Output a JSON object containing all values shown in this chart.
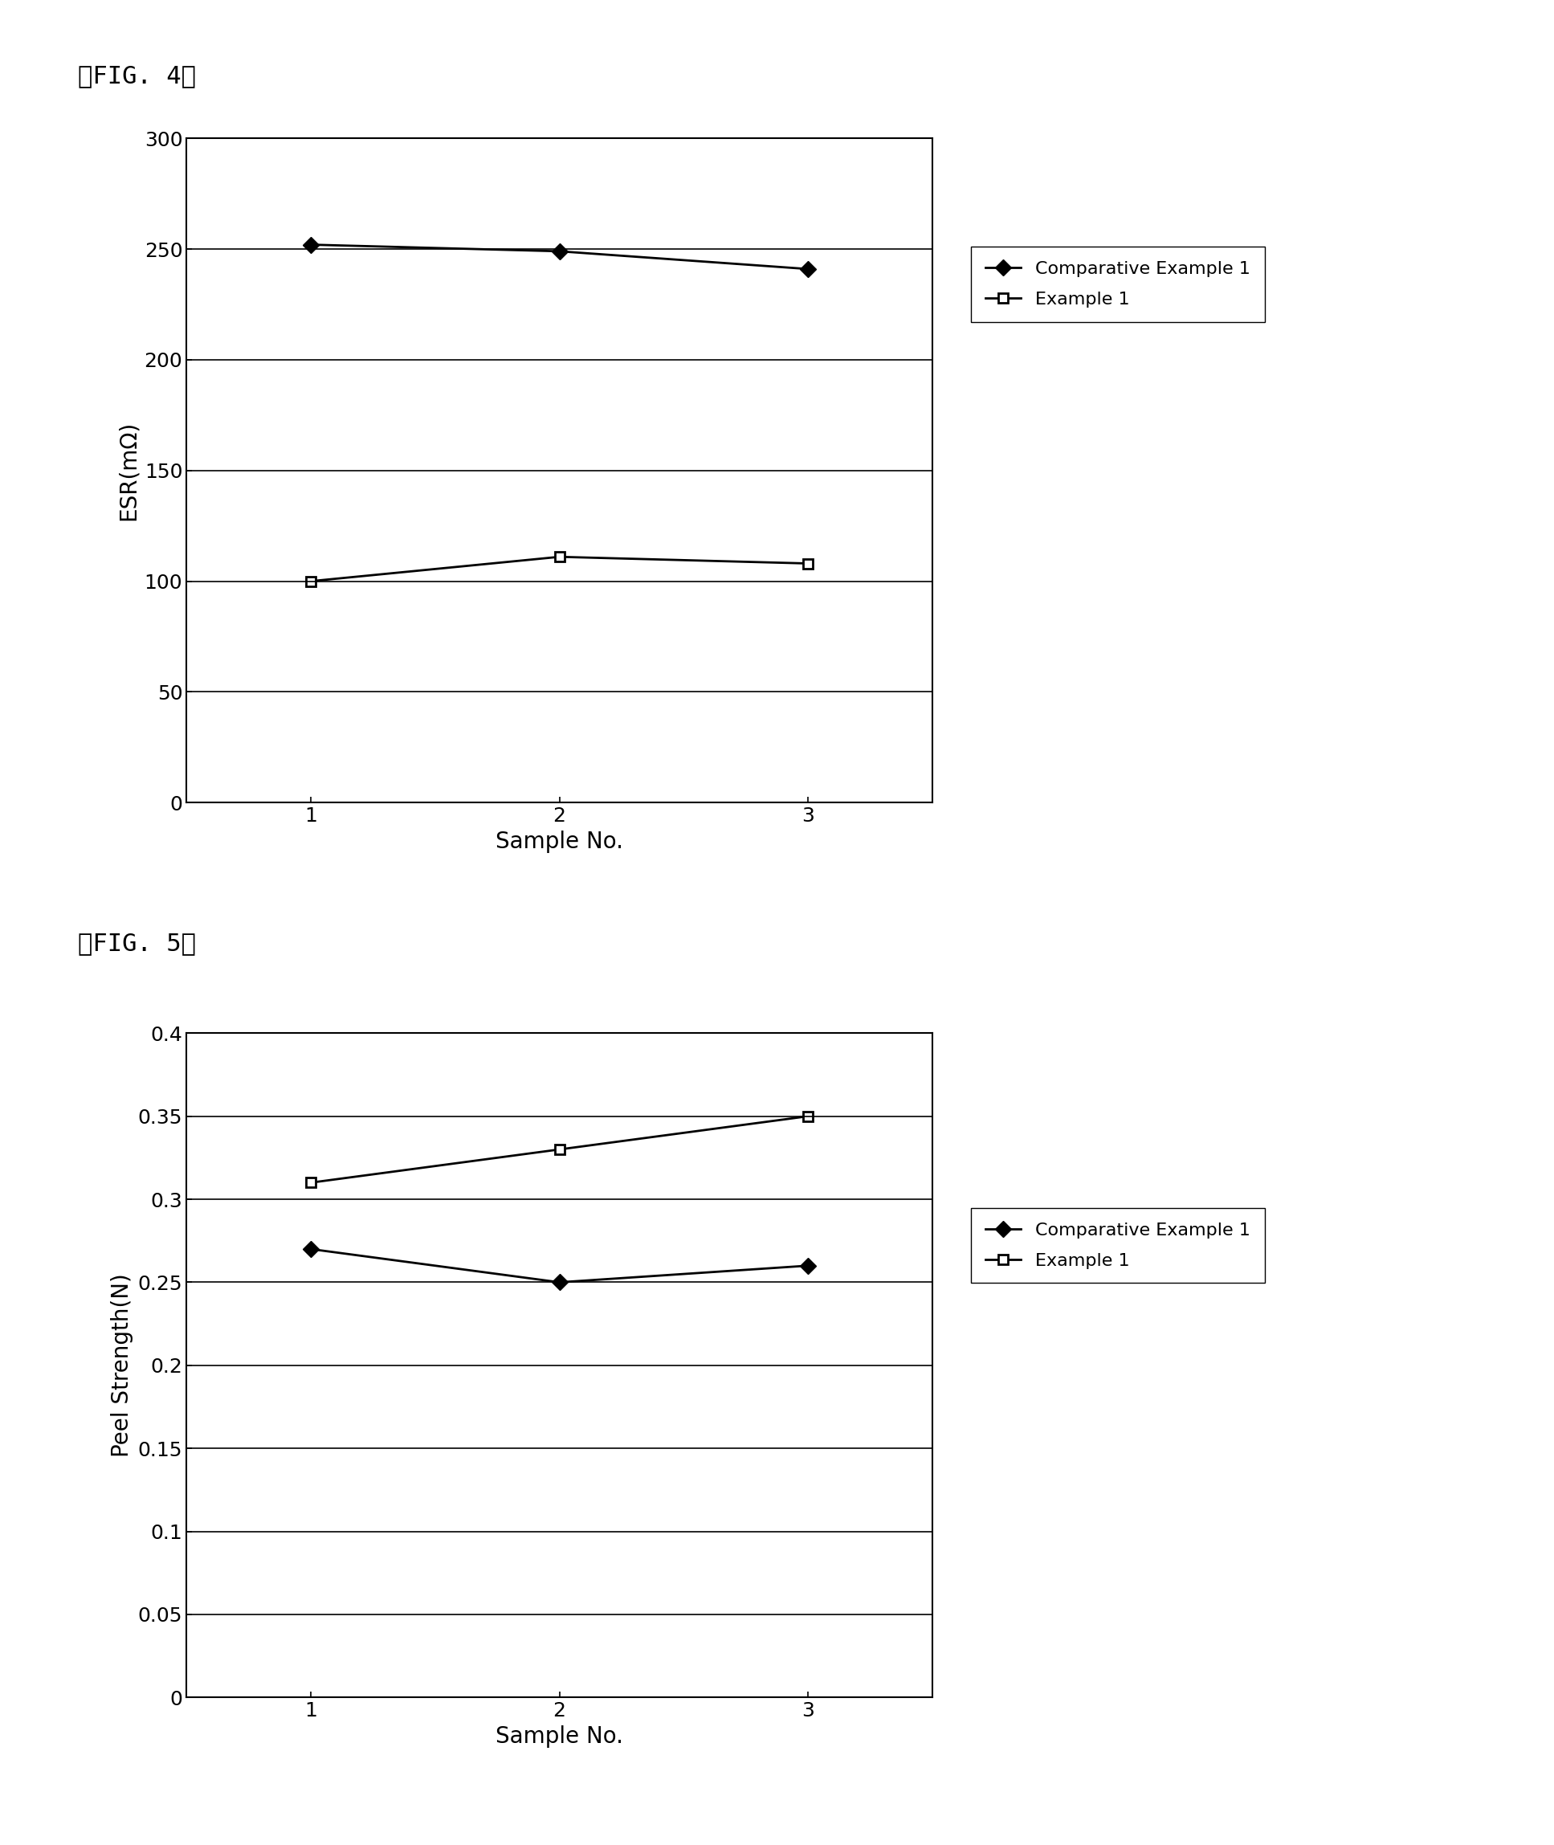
{
  "fig4": {
    "title": "【FIG. 4】",
    "x": [
      1,
      2,
      3
    ],
    "comp_example1": [
      252,
      249,
      241
    ],
    "example1": [
      100,
      111,
      108
    ],
    "ylabel": "ESR(mΩ)",
    "xlabel": "Sample No.",
    "ylim": [
      0,
      300
    ],
    "yticks": [
      0,
      50,
      100,
      150,
      200,
      250,
      300
    ],
    "xlim": [
      0.5,
      3.5
    ],
    "xticks": [
      1,
      2,
      3
    ]
  },
  "fig5": {
    "title": "【FIG. 5】",
    "x": [
      1,
      2,
      3
    ],
    "comp_example1": [
      0.27,
      0.25,
      0.26
    ],
    "example1": [
      0.31,
      0.33,
      0.35
    ],
    "ylabel": "Peel Strength(N)",
    "xlabel": "Sample No.",
    "ylim": [
      0,
      0.4
    ],
    "yticks": [
      0,
      0.05,
      0.1,
      0.15,
      0.2,
      0.25,
      0.3,
      0.35,
      0.4
    ],
    "xlim": [
      0.5,
      3.5
    ],
    "xticks": [
      1,
      2,
      3
    ]
  },
  "legend_comp": "Comparative Example 1",
  "legend_ex": "Example 1",
  "line_color": "#000000",
  "background_color": "#ffffff",
  "font_size_title": 22,
  "font_size_label": 20,
  "font_size_tick": 18,
  "font_size_legend": 16
}
